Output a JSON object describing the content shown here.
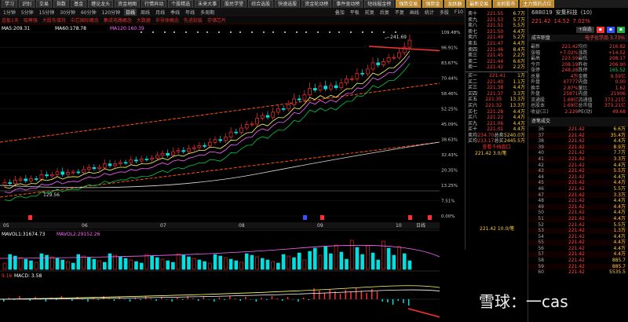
{
  "topbar": {
    "buttons": [
      "学习",
      "识别",
      "交易",
      "指数",
      "基金",
      "缠论龙头",
      "资金地图",
      "行情异动",
      "个股精选",
      "未来大事",
      "股民学堂",
      "综合选股",
      "快速选股",
      "资金轮动榜",
      "事件驱动榜",
      "短线掘金榜"
    ],
    "gold_buttons": [
      "强势交易",
      "强势金",
      "龙跃器",
      "最新交易",
      "龙抓股市",
      "主力猎的点位"
    ]
  },
  "periods": [
    "1分钟",
    "5分钟",
    "15分钟",
    "30分钟",
    "60分钟",
    "120分钟",
    "日线",
    "周线",
    "月线",
    "季线",
    "年线",
    "多周期"
  ],
  "period_selected": "日线",
  "toolbar_right": [
    "叠加",
    "平板",
    "前复",
    "后复",
    "不复",
    "画线",
    "统计",
    "多股",
    "F10"
  ],
  "alerts": [
    "连板1天",
    "吸筹强",
    "大股东增持",
    "中芯国际概念",
    "集成电路概念",
    "大数据",
    "半导体概念",
    "先进封装",
    "存储芯片"
  ],
  "ma_line": {
    "ma5": "MA5:209.31",
    "ma60": "MA60:178.78",
    "ma120": "MA120:160.39"
  },
  "vol_label": "MAVOL1:31674.73",
  "vol_label2": "MAVOL2:29152.26",
  "macd_label": "MACD: 3.58",
  "macd_prefix": "9.16",
  "price_axis": [
    "109.48%",
    "96.91%",
    "83.67%",
    "70.44%",
    "58.46%",
    "52.25%",
    "45.09%",
    "38.63%",
    "32.43%",
    "20.35%",
    "13.25%",
    "7.51%",
    "0.00%"
  ],
  "vol_axis": [
    "10.00",
    "5.00",
    "0.00"
  ],
  "time_axis": [
    "05",
    "06",
    "07",
    "08",
    "09",
    "10",
    "日线"
  ],
  "chart_data": {
    "type": "candlestick",
    "max_label": "241.69",
    "min_label": "129.56",
    "x": [
      "05",
      "06",
      "07",
      "08",
      "09",
      "10"
    ],
    "note": "approximate daily candles; prices estimated from overlay"
  },
  "orderbook": {
    "sells": [
      {
        "label": "卖十",
        "price": "221.55",
        "vol": "6.7万"
      },
      {
        "label": "卖九",
        "price": "221.53",
        "vol": "5.7万"
      },
      {
        "label": "卖八",
        "price": "221.51",
        "vol": "5.5万"
      },
      {
        "label": "卖七",
        "price": "221.50",
        "vol": "4.4万"
      },
      {
        "label": "卖六",
        "price": "221.49",
        "vol": "5.2万"
      },
      {
        "label": "卖五",
        "price": "221.47",
        "vol": "4.4万"
      },
      {
        "label": "卖四",
        "price": "221.46",
        "vol": "8.4万"
      },
      {
        "label": "卖三",
        "price": "221.45",
        "vol": "2.2万"
      },
      {
        "label": "卖二",
        "price": "221.44",
        "vol": "6.6万"
      },
      {
        "label": "卖一",
        "price": "221.42",
        "vol": "2.2万"
      }
    ],
    "buys": [
      {
        "label": "买一",
        "price": "221.41",
        "vol": "1万"
      },
      {
        "label": "买二",
        "price": "221.40",
        "vol": "1.1万"
      },
      {
        "label": "买三",
        "price": "221.38",
        "vol": "4.4万"
      },
      {
        "label": "买四",
        "price": "221.37",
        "vol": "3.3万"
      },
      {
        "label": "买五",
        "price": "221.35",
        "vol": "13.3万"
      },
      {
        "label": "买六",
        "price": "221.32",
        "vol": "13.3万"
      },
      {
        "label": "买七",
        "price": "221.28",
        "vol": "4.4万"
      },
      {
        "label": "买八",
        "price": "221.22",
        "vol": "4.4万"
      },
      {
        "label": "买九",
        "price": "221.06",
        "vol": "4.4万"
      },
      {
        "label": "买十",
        "price": "221.01",
        "vol": "4.4万"
      }
    ],
    "totals": [
      {
        "k": "卖均",
        "v": "234.70",
        "k2": "总卖",
        "v2": "5240.0万"
      },
      {
        "k": "买均",
        "v": "213.17",
        "k2": "总买",
        "v2": "2445.5万"
      }
    ],
    "link": "查看千档盘口",
    "last_trade": "221.42  3.0/笔",
    "footer": "221.42  10.0/笔"
  },
  "stock": {
    "code": "688019",
    "name": "安集科技",
    "rank": "(10)",
    "price": "221.42",
    "change": "14.52",
    "pct": "7.02%",
    "add_btn": "+自选",
    "sector": "电子化学品",
    "sector_pct": "3.73%",
    "tabs": [
      "成市职盘"
    ],
    "stats": [
      [
        "最新",
        "221.42",
        "均价",
        "216.82"
      ],
      [
        "涨幅",
        "+7.02%",
        "涨跌",
        "+14.52"
      ],
      [
        "最高",
        "223.59",
        "最低",
        "208.17"
      ],
      [
        "今开",
        "208.19",
        "昨收",
        "206.90"
      ],
      [
        "涨停",
        "248.28",
        "跌停",
        "165.52"
      ],
      [
        "总量",
        "4万",
        "金额",
        "9.59亿"
      ],
      [
        "外盘",
        "47777",
        "内盘",
        "0.00"
      ],
      [
        "换手",
        "2.87%",
        "量比",
        "1.62"
      ],
      [
        "外盘",
        "25871",
        "内盘",
        "21906"
      ],
      [
        "流通股",
        "1.69亿",
        "流通值",
        "373.21亿"
      ],
      [
        "总股本",
        "1.69亿",
        "总市值",
        "373.21亿"
      ],
      [
        "收益(三)",
        "2.229",
        "PE(动)",
        "49.68"
      ]
    ]
  },
  "ticks_title": "逐笔成交",
  "ticks": [
    [
      "36",
      "221.42",
      "6.6万"
    ],
    [
      "37",
      "221.42",
      "35.4万"
    ],
    [
      "38",
      "221.42",
      "4.4万"
    ],
    [
      "39",
      "221.42",
      "8.9万"
    ],
    [
      "40",
      "221.42",
      "7.7万"
    ],
    [
      "41",
      "221.42",
      "3.3万"
    ],
    [
      "42",
      "221.42",
      "4.4万"
    ],
    [
      "43",
      "221.42",
      "5.5万"
    ],
    [
      "44",
      "221.42",
      "4.4万"
    ],
    [
      "45",
      "221.42",
      "4.4万"
    ],
    [
      "46",
      "221.42",
      "5.5万"
    ],
    [
      "47",
      "221.42",
      "3.3万"
    ],
    [
      "48",
      "221.42",
      "4.4万"
    ],
    [
      "49",
      "221.42",
      "4.4万"
    ],
    [
      "50",
      "221.42",
      "4.4万"
    ],
    [
      "51",
      "221.42",
      "4.4万"
    ],
    [
      "52",
      "221.42",
      "5.5万"
    ],
    [
      "53",
      "221.42",
      "1.3万"
    ],
    [
      "54",
      "221.42",
      "4.4万"
    ],
    [
      "55",
      "221.42",
      "4.4万"
    ],
    [
      "56",
      "221.42",
      "4.4万"
    ],
    [
      "57",
      "221.42",
      "4.4万"
    ],
    [
      "58",
      "221.42",
      "885.7"
    ],
    [
      "59",
      "221.42",
      "885.7"
    ],
    [
      "60",
      "221.42",
      "5535.5"
    ]
  ],
  "watermark": "雪球：一cas"
}
